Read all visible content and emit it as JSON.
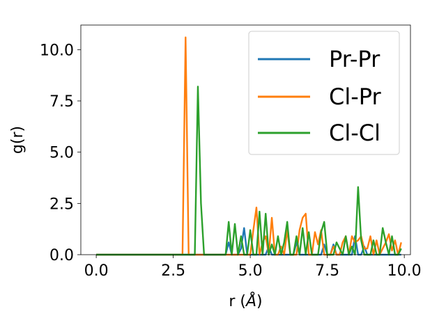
{
  "chart_data": {
    "type": "line",
    "title": "",
    "xlabel_prefix": "r (",
    "xlabel_var": "Å",
    "xlabel_suffix": ")",
    "ylabel": "g(r)",
    "xlim": [
      -0.5,
      10.2
    ],
    "ylim": [
      0,
      11.2
    ],
    "xticks": [
      0.0,
      2.5,
      5.0,
      7.5,
      10.0
    ],
    "xtick_labels": [
      "0.0",
      "2.5",
      "5.0",
      "7.5",
      "10.0"
    ],
    "yticks": [
      0.0,
      2.5,
      5.0,
      7.5,
      10.0
    ],
    "ytick_labels": [
      "0.0",
      "2.5",
      "5.0",
      "7.5",
      "10.0"
    ],
    "grid": false,
    "legend_position": "top-right",
    "series": [
      {
        "name": "Pr-Pr",
        "color": "#1f77b4",
        "x": [
          0.0,
          4.2,
          4.3,
          4.4,
          4.6,
          4.7,
          4.8,
          4.9,
          5.0,
          5.5,
          5.6,
          5.7,
          6.4,
          6.5,
          6.6,
          7.3,
          7.4,
          7.5,
          7.6,
          7.7,
          7.8,
          7.9,
          8.3,
          8.4,
          8.5,
          8.6,
          8.7,
          8.8,
          8.9,
          9.0,
          9.9
        ],
        "y": [
          0.0,
          0.0,
          0.6,
          0.0,
          0.0,
          0.3,
          1.3,
          0.0,
          0.0,
          0.0,
          0.4,
          0.0,
          0.0,
          0.6,
          0.0,
          0.0,
          0.5,
          0.0,
          0.0,
          0.5,
          0.0,
          0.0,
          0.0,
          0.9,
          0.0,
          0.0,
          0.4,
          0.0,
          0.0,
          0.0,
          0.0
        ]
      },
      {
        "name": "Cl-Pr",
        "color": "#ff7f0e",
        "x": [
          0.0,
          2.8,
          2.9,
          3.0,
          4.1,
          4.2,
          4.3,
          4.4,
          4.5,
          4.6,
          4.7,
          4.8,
          4.9,
          5.0,
          5.1,
          5.2,
          5.3,
          5.4,
          5.5,
          5.6,
          5.7,
          5.8,
          5.9,
          6.0,
          6.1,
          6.2,
          6.3,
          6.4,
          6.5,
          6.6,
          6.7,
          6.8,
          6.9,
          7.0,
          7.1,
          7.2,
          7.3,
          7.4,
          7.5,
          7.6,
          7.7,
          7.8,
          7.9,
          8.0,
          8.1,
          8.2,
          8.3,
          8.4,
          8.5,
          8.6,
          8.7,
          8.8,
          8.9,
          9.0,
          9.1,
          9.2,
          9.3,
          9.4,
          9.5,
          9.6,
          9.7,
          9.8,
          9.9
        ],
        "y": [
          0.0,
          0.0,
          10.6,
          0.0,
          0.0,
          0.0,
          0.0,
          0.0,
          0.0,
          0.0,
          0.0,
          0.0,
          0.0,
          0.0,
          1.2,
          2.3,
          0.0,
          0.6,
          0.9,
          0.0,
          1.8,
          0.0,
          0.0,
          0.4,
          0.0,
          1.2,
          0.0,
          0.0,
          0.0,
          1.2,
          1.8,
          2.0,
          0.0,
          0.0,
          1.1,
          0.5,
          1.2,
          0.0,
          0.0,
          0.0,
          0.4,
          0.0,
          0.0,
          0.6,
          0.9,
          0.0,
          0.9,
          0.6,
          0.7,
          0.9,
          0.3,
          0.3,
          0.9,
          0.0,
          0.7,
          0.0,
          0.3,
          0.6,
          1.0,
          0.2,
          0.7,
          0.0,
          0.6
        ]
      },
      {
        "name": "Cl-Cl",
        "color": "#2ca02c",
        "x": [
          0.0,
          3.2,
          3.3,
          3.4,
          3.5,
          4.1,
          4.2,
          4.3,
          4.4,
          4.5,
          4.6,
          4.7,
          4.8,
          4.9,
          5.0,
          5.1,
          5.2,
          5.3,
          5.4,
          5.5,
          5.6,
          5.7,
          5.8,
          5.9,
          6.0,
          6.1,
          6.2,
          6.3,
          6.4,
          6.5,
          6.6,
          6.7,
          6.8,
          6.9,
          7.0,
          7.1,
          7.2,
          7.3,
          7.4,
          7.5,
          7.6,
          7.7,
          7.8,
          7.9,
          8.0,
          8.1,
          8.2,
          8.3,
          8.4,
          8.5,
          8.6,
          8.7,
          8.8,
          8.9,
          9.0,
          9.1,
          9.2,
          9.3,
          9.4,
          9.5,
          9.6,
          9.7,
          9.8,
          9.9
        ],
        "y": [
          0.0,
          0.0,
          8.2,
          2.5,
          0.0,
          0.0,
          0.0,
          1.6,
          0.0,
          1.5,
          0.0,
          0.9,
          0.0,
          0.0,
          1.2,
          0.0,
          0.0,
          2.1,
          0.0,
          2.0,
          0.0,
          0.5,
          0.0,
          0.9,
          0.0,
          0.6,
          1.6,
          0.0,
          0.0,
          0.9,
          0.0,
          1.3,
          0.0,
          1.1,
          0.0,
          0.0,
          0.0,
          1.1,
          1.6,
          0.0,
          0.0,
          0.0,
          0.6,
          0.3,
          0.0,
          0.9,
          0.0,
          0.4,
          0.0,
          3.3,
          0.7,
          0.0,
          0.0,
          0.0,
          0.7,
          0.0,
          0.0,
          1.3,
          0.6,
          0.0,
          0.9,
          0.0,
          0.0,
          0.3
        ]
      }
    ]
  }
}
